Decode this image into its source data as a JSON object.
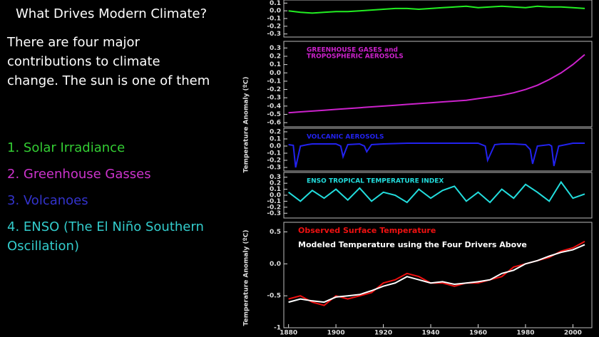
{
  "slide": {
    "title": "What Drives Modern Climate?",
    "intro_lines": [
      "There are four major",
      "contributions to climate",
      "change.  The sun is one of them"
    ],
    "items": [
      {
        "lines": [
          "1.  Solar Irradiance"
        ],
        "color": "#33cc33"
      },
      {
        "lines": [
          "2.  Greenhouse Gasses"
        ],
        "color": "#cc33cc"
      },
      {
        "lines": [
          "3.   Volcanoes"
        ],
        "color": "#3333cc"
      },
      {
        "lines": [
          "4.  ENSO (The El Niño Southern",
          "     Oscillation)"
        ],
        "color": "#33cccc"
      }
    ]
  },
  "chart_data": [
    {
      "type": "line",
      "xlim": [
        1878,
        2008
      ],
      "ylim": [
        -0.34,
        0.14
      ],
      "yticks": [
        0.1,
        {
          "value": 0,
          "label": "0.0"
        },
        -0.1,
        -0.2,
        -0.3
      ],
      "x": [
        1880,
        1885,
        1890,
        1895,
        1900,
        1905,
        1910,
        1915,
        1920,
        1925,
        1930,
        1935,
        1940,
        1945,
        1950,
        1955,
        1960,
        1965,
        1970,
        1975,
        1980,
        1985,
        1990,
        1995,
        2000,
        2005
      ],
      "series": [
        {
          "color": "#22ee22",
          "values": [
            0.0,
            -0.02,
            -0.03,
            -0.02,
            -0.01,
            -0.01,
            0.0,
            0.01,
            0.02,
            0.03,
            0.03,
            0.02,
            0.03,
            0.04,
            0.05,
            0.06,
            0.04,
            0.05,
            0.06,
            0.05,
            0.04,
            0.06,
            0.05,
            0.05,
            0.04,
            0.03
          ]
        }
      ]
    },
    {
      "type": "line",
      "xlim": [
        1878,
        2008
      ],
      "ylim": [
        -0.65,
        0.38
      ],
      "title_lines": [
        "GREENHOUSE GASES and",
        "TROPOSPHERIC AEROSOLS"
      ],
      "yticks": [
        0.3,
        0.2,
        0.1,
        {
          "value": 0,
          "label": "0.0"
        },
        -0.1,
        -0.2,
        -0.3,
        -0.4,
        -0.5,
        -0.6
      ],
      "x": [
        1880,
        1885,
        1890,
        1895,
        1900,
        1905,
        1910,
        1915,
        1920,
        1925,
        1930,
        1935,
        1940,
        1945,
        1950,
        1955,
        1960,
        1965,
        1970,
        1975,
        1980,
        1985,
        1990,
        1995,
        2000,
        2005
      ],
      "series": [
        {
          "color": "#cc22cc",
          "values": [
            -0.48,
            -0.47,
            -0.46,
            -0.45,
            -0.44,
            -0.43,
            -0.42,
            -0.41,
            -0.4,
            -0.39,
            -0.38,
            -0.37,
            -0.36,
            -0.35,
            -0.34,
            -0.33,
            -0.31,
            -0.29,
            -0.27,
            -0.24,
            -0.2,
            -0.15,
            -0.08,
            0.0,
            0.1,
            0.22
          ]
        }
      ]
    },
    {
      "type": "line",
      "xlim": [
        1878,
        2008
      ],
      "ylim": [
        -0.35,
        0.25
      ],
      "title_lines": [
        "VOLCANIC AEROSOLS"
      ],
      "ylabel": "Temperature Anomaly (ºC)",
      "yticks": [
        0.2,
        0.1,
        {
          "value": 0,
          "label": "0.0"
        },
        -0.1,
        -0.2,
        -0.3
      ],
      "x": [
        1880,
        1882,
        1883,
        1885,
        1888,
        1890,
        1895,
        1900,
        1902,
        1903,
        1905,
        1910,
        1912,
        1913,
        1915,
        1920,
        1930,
        1940,
        1950,
        1960,
        1963,
        1964,
        1967,
        1970,
        1975,
        1980,
        1982,
        1983,
        1985,
        1990,
        1991,
        1992,
        1994,
        2000,
        2005
      ],
      "series": [
        {
          "color": "#2222ee",
          "values": [
            0.02,
            0.01,
            -0.3,
            0.0,
            0.02,
            0.03,
            0.03,
            0.03,
            0.0,
            -0.15,
            0.02,
            0.03,
            0.0,
            -0.08,
            0.02,
            0.03,
            0.04,
            0.04,
            0.04,
            0.04,
            0.0,
            -0.2,
            0.02,
            0.03,
            0.03,
            0.02,
            -0.05,
            -0.25,
            0.0,
            0.02,
            0.0,
            -0.28,
            0.0,
            0.04,
            0.04
          ]
        }
      ]
    },
    {
      "type": "line",
      "xlim": [
        1878,
        2008
      ],
      "ylim": [
        -0.38,
        0.38
      ],
      "title_lines": [
        "ENSO TROPICAL TEMPERATURE INDEX"
      ],
      "yticks": [
        0.3,
        0.2,
        0.1,
        {
          "value": 0,
          "label": "0.0"
        },
        -0.1,
        -0.2,
        -0.3
      ],
      "x": [
        1880,
        1885,
        1890,
        1895,
        1900,
        1905,
        1910,
        1915,
        1920,
        1925,
        1930,
        1935,
        1940,
        1945,
        1950,
        1955,
        1960,
        1965,
        1970,
        1975,
        1980,
        1985,
        1990,
        1995,
        2000,
        2005
      ],
      "series": [
        {
          "color": "#22dddd",
          "values": [
            0.05,
            -0.1,
            0.08,
            -0.05,
            0.1,
            -0.08,
            0.12,
            -0.1,
            0.05,
            0.0,
            -0.12,
            0.1,
            -0.05,
            0.08,
            0.15,
            -0.1,
            0.05,
            -0.12,
            0.1,
            -0.05,
            0.18,
            0.05,
            -0.1,
            0.22,
            -0.05,
            0.02
          ]
        }
      ]
    },
    {
      "type": "line",
      "xlim": [
        1878,
        2008
      ],
      "ylim": [
        -1.0,
        0.65
      ],
      "ylabel": "Temperature Anomaly (ºC)",
      "yticks": [
        0.5,
        {
          "value": 0,
          "label": "0.0"
        },
        -0.5,
        -1.0
      ],
      "xticks": [
        1880,
        1900,
        1920,
        1940,
        1960,
        1980,
        2000
      ],
      "x": [
        1880,
        1885,
        1890,
        1895,
        1900,
        1905,
        1910,
        1915,
        1920,
        1925,
        1930,
        1935,
        1940,
        1945,
        1950,
        1955,
        1960,
        1965,
        1970,
        1975,
        1980,
        1985,
        1990,
        1995,
        2000,
        2005
      ],
      "series": [
        {
          "name": "Observed Surface Temperature",
          "color": "#ee1111",
          "values": [
            -0.55,
            -0.5,
            -0.6,
            -0.65,
            -0.5,
            -0.55,
            -0.5,
            -0.45,
            -0.3,
            -0.25,
            -0.15,
            -0.2,
            -0.3,
            -0.3,
            -0.35,
            -0.3,
            -0.3,
            -0.25,
            -0.2,
            -0.05,
            0.0,
            0.05,
            0.1,
            0.2,
            0.25,
            0.35
          ]
        },
        {
          "name": "Modeled Temperature using the Four Drivers Above",
          "color": "#ffffff",
          "values": [
            -0.6,
            -0.55,
            -0.58,
            -0.6,
            -0.52,
            -0.5,
            -0.48,
            -0.42,
            -0.35,
            -0.3,
            -0.2,
            -0.25,
            -0.3,
            -0.28,
            -0.32,
            -0.3,
            -0.28,
            -0.25,
            -0.15,
            -0.1,
            0.0,
            0.05,
            0.12,
            0.18,
            0.22,
            0.3
          ]
        }
      ]
    }
  ]
}
